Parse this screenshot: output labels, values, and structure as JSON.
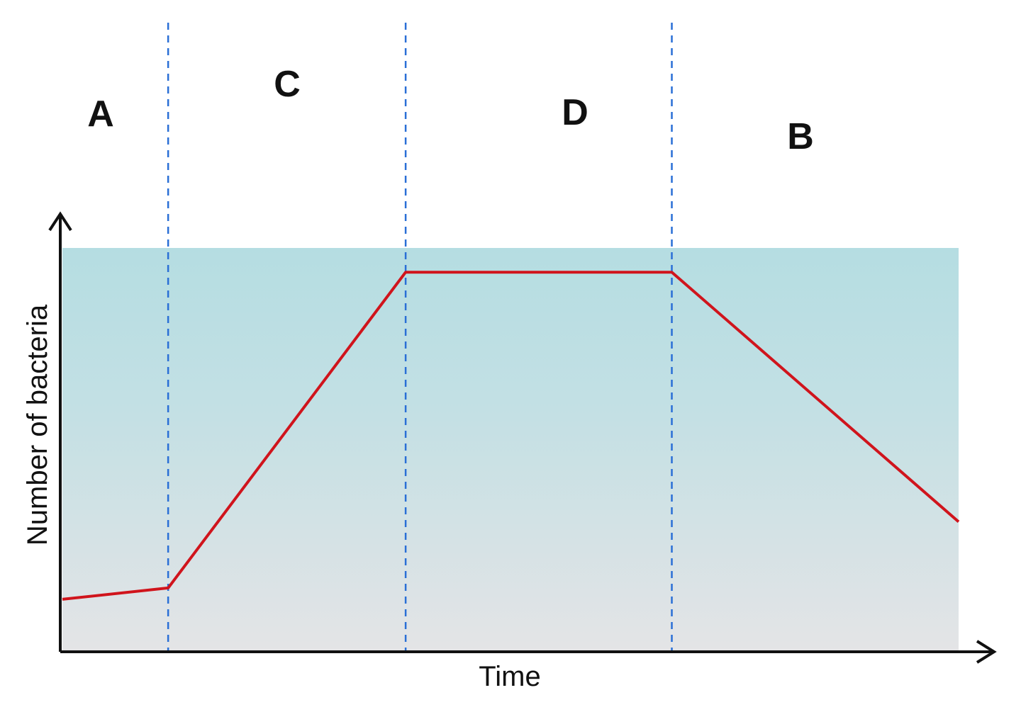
{
  "chart_data": {
    "type": "line",
    "xlabel": "Time",
    "ylabel": "Number of bacteria",
    "xlim": [
      0,
      1
    ],
    "ylim": [
      0,
      1
    ],
    "series": [
      {
        "x": [
          0.0,
          0.118,
          0.383,
          0.68,
          1.0
        ],
        "y": [
          0.13,
          0.158,
          0.94,
          0.94,
          0.322
        ]
      }
    ],
    "phases": [
      {
        "label": "A",
        "x_start": 0.0,
        "x_end": 0.118
      },
      {
        "label": "C",
        "x_start": 0.118,
        "x_end": 0.383
      },
      {
        "label": "D",
        "x_start": 0.383,
        "x_end": 0.68
      },
      {
        "label": "B",
        "x_start": 0.68,
        "x_end": 1.0
      }
    ],
    "phase_boundaries": [
      0.118,
      0.383,
      0.68
    ],
    "colors": {
      "line": "#d0141c",
      "divider": "#2a6fd6",
      "background_top": "#b5dde2",
      "background_bottom": "#e4e4e6",
      "axis": "#111111"
    },
    "grid": false,
    "legend": "none"
  }
}
